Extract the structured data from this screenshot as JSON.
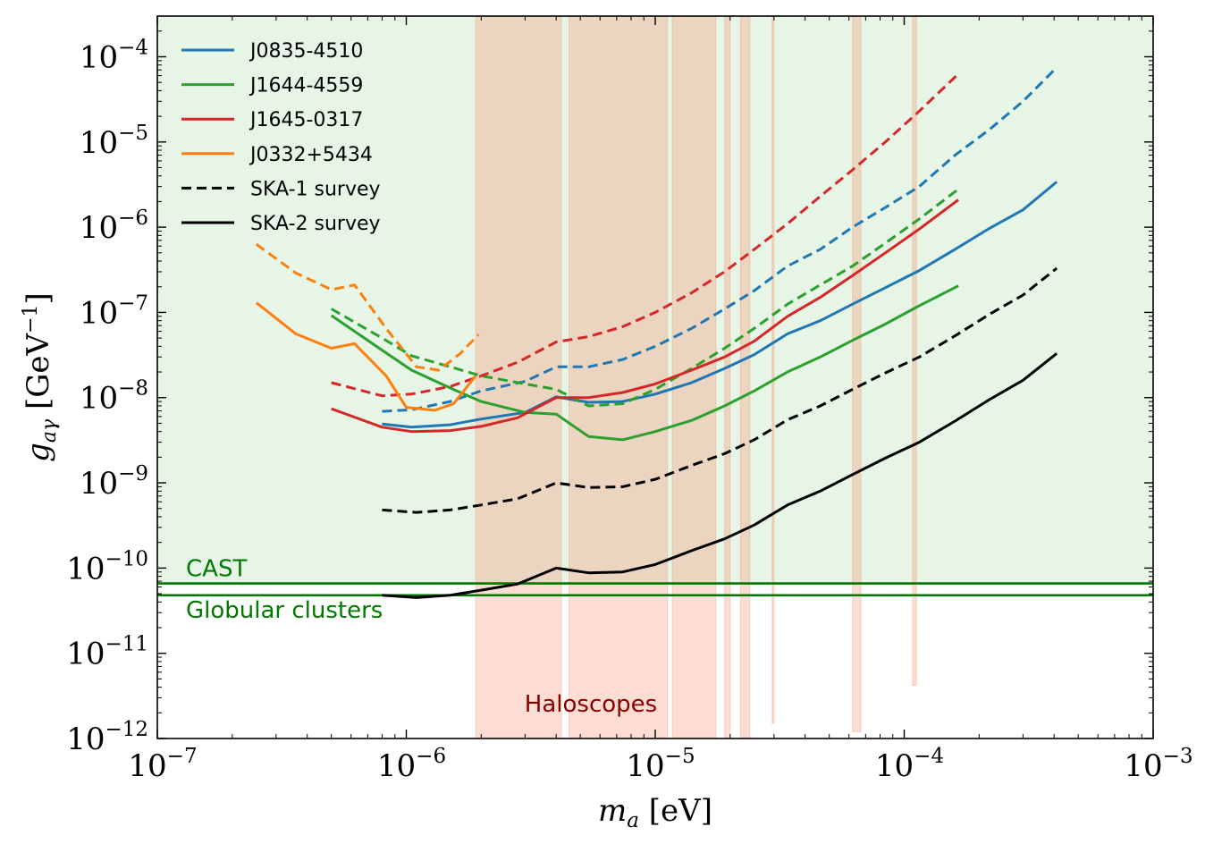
{
  "chart_data": {
    "type": "line",
    "xlabel": "m_a [eV]",
    "ylabel": "g_aγ [GeV^-1]",
    "xscale": "log",
    "yscale": "log",
    "xlim": [
      1e-07,
      0.001
    ],
    "ylim": [
      1e-12,
      0.0003
    ],
    "x_ticks": [
      {
        "base": "10",
        "exp": "−7",
        "value": 1e-07
      },
      {
        "base": "10",
        "exp": "−6",
        "value": 1e-06
      },
      {
        "base": "10",
        "exp": "−5",
        "value": 1e-05
      },
      {
        "base": "10",
        "exp": "−4",
        "value": 0.0001
      },
      {
        "base": "10",
        "exp": "−3",
        "value": 0.001
      }
    ],
    "y_ticks": [
      {
        "base": "10",
        "exp": "−12",
        "value": 1e-12
      },
      {
        "base": "10",
        "exp": "−11",
        "value": 1e-11
      },
      {
        "base": "10",
        "exp": "−10",
        "value": 1e-10
      },
      {
        "base": "10",
        "exp": "−9",
        "value": 1e-09
      },
      {
        "base": "10",
        "exp": "−8",
        "value": 1e-08
      },
      {
        "base": "10",
        "exp": "−7",
        "value": 1e-07
      },
      {
        "base": "10",
        "exp": "−6",
        "value": 1e-06
      },
      {
        "base": "10",
        "exp": "−5",
        "value": 1e-05
      },
      {
        "base": "10",
        "exp": "−4",
        "value": 0.0001
      }
    ],
    "legend_position": "top-left",
    "legend": [
      {
        "label": "J0835-4510",
        "color": "#1f77b4",
        "style": "solid"
      },
      {
        "label": "J1644-4559",
        "color": "#2ca02c",
        "style": "solid"
      },
      {
        "label": "J1645-0317",
        "color": "#d62728",
        "style": "solid"
      },
      {
        "label": "J0332+5434",
        "color": "#ff7f0e",
        "style": "solid"
      },
      {
        "label": "SKA-1 survey",
        "color": "#000000",
        "style": "dashed"
      },
      {
        "label": "SKA-2 survey",
        "color": "#000000",
        "style": "solid"
      }
    ],
    "series": [
      {
        "name": "J0835-4510",
        "survey": "SKA-2",
        "color": "#1f77b4",
        "dashed": false,
        "points": [
          [
            8e-07,
            4.9e-09
          ],
          [
            1.05e-06,
            4.5e-09
          ],
          [
            1.5e-06,
            4.8e-09
          ],
          [
            2e-06,
            5.6e-09
          ],
          [
            3e-06,
            6.7e-09
          ],
          [
            4e-06,
            1.02e-08
          ],
          [
            5.4e-06,
            8.8e-09
          ],
          [
            7.4e-06,
            9e-09
          ],
          [
            1e-05,
            1.1e-08
          ],
          [
            1.4e-05,
            1.5e-08
          ],
          [
            1.9e-05,
            2.2e-08
          ],
          [
            2.5e-05,
            3.2e-08
          ],
          [
            3.4e-05,
            5.6e-08
          ],
          [
            4.6e-05,
            8e-08
          ],
          [
            6.2e-05,
            1.25e-07
          ],
          [
            8.4e-05,
            1.95e-07
          ],
          [
            0.000115,
            3.1e-07
          ],
          [
            0.00016,
            5.5e-07
          ],
          [
            0.00022,
            9.7e-07
          ],
          [
            0.0003,
            1.6e-06
          ],
          [
            0.00041,
            3.4e-06
          ]
        ]
      },
      {
        "name": "J0835-4510",
        "survey": "SKA-1",
        "color": "#1f77b4",
        "dashed": true,
        "points": [
          [
            8e-07,
            6.9e-09
          ],
          [
            1.05e-06,
            7.2e-09
          ],
          [
            1.5e-06,
            9e-09
          ],
          [
            2e-06,
            1.2e-08
          ],
          [
            3e-06,
            1.55e-08
          ],
          [
            4e-06,
            2.3e-08
          ],
          [
            5.4e-06,
            2.3e-08
          ],
          [
            7.4e-06,
            2.8e-08
          ],
          [
            1e-05,
            4e-08
          ],
          [
            1.4e-05,
            6.5e-08
          ],
          [
            1.9e-05,
            1.1e-07
          ],
          [
            2.5e-05,
            1.8e-07
          ],
          [
            3.4e-05,
            3.5e-07
          ],
          [
            4.6e-05,
            5.5e-07
          ],
          [
            6.2e-05,
            1e-06
          ],
          [
            8.4e-05,
            1.7e-06
          ],
          [
            0.000115,
            3e-06
          ],
          [
            0.00016,
            7e-06
          ],
          [
            0.00022,
            1.4e-05
          ],
          [
            0.0003,
            3e-05
          ],
          [
            0.00041,
            7.5e-05
          ]
        ]
      },
      {
        "name": "J1644-4559",
        "survey": "SKA-2",
        "color": "#2ca02c",
        "dashed": false,
        "points": [
          [
            5e-07,
            9.2e-08
          ],
          [
            8e-07,
            3.6e-08
          ],
          [
            1.05e-06,
            2.1e-08
          ],
          [
            1.5e-06,
            1.3e-08
          ],
          [
            2e-06,
            9e-09
          ],
          [
            3e-06,
            6.7e-09
          ],
          [
            4e-06,
            6.4e-09
          ],
          [
            5.4e-06,
            3.5e-09
          ],
          [
            7.4e-06,
            3.2e-09
          ],
          [
            1e-05,
            4e-09
          ],
          [
            1.4e-05,
            5.4e-09
          ],
          [
            1.9e-05,
            8e-09
          ],
          [
            2.5e-05,
            1.2e-08
          ],
          [
            3.4e-05,
            2e-08
          ],
          [
            4.6e-05,
            3e-08
          ],
          [
            6.2e-05,
            4.7e-08
          ],
          [
            8.4e-05,
            7.3e-08
          ],
          [
            0.000115,
            1.2e-07
          ],
          [
            0.000165,
            2.05e-07
          ]
        ]
      },
      {
        "name": "J1644-4559",
        "survey": "SKA-1",
        "color": "#2ca02c",
        "dashed": true,
        "points": [
          [
            5e-07,
            1.1e-07
          ],
          [
            8e-07,
            5e-08
          ],
          [
            1.05e-06,
            3.1e-08
          ],
          [
            1.5e-06,
            2.3e-08
          ],
          [
            2e-06,
            1.8e-08
          ],
          [
            3e-06,
            1.45e-08
          ],
          [
            4e-06,
            1.25e-08
          ],
          [
            5.4e-06,
            8e-09
          ],
          [
            7.4e-06,
            8.5e-09
          ],
          [
            1e-05,
            1.25e-08
          ],
          [
            1.4e-05,
            2.2e-08
          ],
          [
            1.9e-05,
            3.8e-08
          ],
          [
            2.5e-05,
            6.5e-08
          ],
          [
            3.4e-05,
            1.25e-07
          ],
          [
            4.6e-05,
            2.1e-07
          ],
          [
            6.2e-05,
            3.5e-07
          ],
          [
            8.4e-05,
            6.5e-07
          ],
          [
            0.000115,
            1.25e-06
          ],
          [
            0.000165,
            2.8e-06
          ]
        ]
      },
      {
        "name": "J1645-0317",
        "survey": "SKA-2",
        "color": "#d62728",
        "dashed": false,
        "points": [
          [
            5e-07,
            7.4e-09
          ],
          [
            8e-07,
            4.5e-09
          ],
          [
            1.05e-06,
            4e-09
          ],
          [
            1.5e-06,
            4.1e-09
          ],
          [
            2e-06,
            4.6e-09
          ],
          [
            2.8e-06,
            5.8e-09
          ],
          [
            4e-06,
            1e-08
          ],
          [
            5.4e-06,
            1e-08
          ],
          [
            7.4e-06,
            1.15e-08
          ],
          [
            1e-05,
            1.45e-08
          ],
          [
            1.4e-05,
            2.1e-08
          ],
          [
            1.9e-05,
            3e-08
          ],
          [
            2.5e-05,
            4.6e-08
          ],
          [
            3.4e-05,
            9e-08
          ],
          [
            4.6e-05,
            1.5e-07
          ],
          [
            6.2e-05,
            2.7e-07
          ],
          [
            8.4e-05,
            5e-07
          ],
          [
            0.000115,
            9.5e-07
          ],
          [
            0.000165,
            2.1e-06
          ]
        ]
      },
      {
        "name": "J1645-0317",
        "survey": "SKA-1",
        "color": "#d62728",
        "dashed": true,
        "points": [
          [
            5e-07,
            1.5e-08
          ],
          [
            8e-07,
            1.05e-08
          ],
          [
            1.05e-06,
            1.1e-08
          ],
          [
            1.5e-06,
            1.35e-08
          ],
          [
            2e-06,
            1.8e-08
          ],
          [
            2.8e-06,
            2.6e-08
          ],
          [
            4e-06,
            4.5e-08
          ],
          [
            5.4e-06,
            5.2e-08
          ],
          [
            7.4e-06,
            6.8e-08
          ],
          [
            1e-05,
            1e-07
          ],
          [
            1.4e-05,
            1.7e-07
          ],
          [
            1.9e-05,
            3e-07
          ],
          [
            2.5e-05,
            5.5e-07
          ],
          [
            3.4e-05,
            1.1e-06
          ],
          [
            4.6e-05,
            2.3e-06
          ],
          [
            6.2e-05,
            4.7e-06
          ],
          [
            8.4e-05,
            1e-05
          ],
          [
            0.000115,
            2.3e-05
          ],
          [
            0.000165,
            6.3e-05
          ]
        ]
      },
      {
        "name": "J0332+5434",
        "survey": "SKA-2",
        "color": "#ff7f0e",
        "dashed": false,
        "points": [
          [
            2.5e-07,
            1.3e-07
          ],
          [
            3.6e-07,
            5.6e-08
          ],
          [
            5e-07,
            3.8e-08
          ],
          [
            6.2e-07,
            4.3e-08
          ],
          [
            8.3e-07,
            1.8e-08
          ],
          [
            1e-06,
            7.7e-09
          ],
          [
            1.3e-06,
            7.1e-09
          ],
          [
            1.55e-06,
            8.5e-09
          ],
          [
            1.9e-06,
            1.8e-08
          ]
        ]
      },
      {
        "name": "J0332+5434",
        "survey": "SKA-1",
        "color": "#ff7f0e",
        "dashed": true,
        "points": [
          [
            2.5e-07,
            6.3e-07
          ],
          [
            3.6e-07,
            2.9e-07
          ],
          [
            5e-07,
            1.85e-07
          ],
          [
            6.2e-07,
            2.1e-07
          ],
          [
            8.3e-07,
            6.5e-08
          ],
          [
            1.1e-06,
            2.3e-08
          ],
          [
            1.35e-06,
            2.1e-08
          ],
          [
            1.65e-06,
            3.3e-08
          ],
          [
            1.95e-06,
            5.5e-08
          ]
        ]
      },
      {
        "name": "SKA-1 survey",
        "survey": "SKA-1",
        "color": "#000000",
        "dashed": true,
        "points": [
          [
            8e-07,
            4.8e-10
          ],
          [
            1.1e-06,
            4.5e-10
          ],
          [
            1.5e-06,
            4.8e-10
          ],
          [
            2e-06,
            5.5e-10
          ],
          [
            2.8e-06,
            6.5e-10
          ],
          [
            4e-06,
            1e-09
          ],
          [
            5.4e-06,
            8.8e-10
          ],
          [
            7.4e-06,
            9e-10
          ],
          [
            1e-05,
            1.1e-09
          ],
          [
            1.4e-05,
            1.6e-09
          ],
          [
            1.9e-05,
            2.2e-09
          ],
          [
            2.5e-05,
            3.2e-09
          ],
          [
            3.4e-05,
            5.5e-09
          ],
          [
            4.6e-05,
            8e-09
          ],
          [
            6.2e-05,
            1.25e-08
          ],
          [
            8.4e-05,
            1.95e-08
          ],
          [
            0.000115,
            3e-08
          ],
          [
            0.00016,
            5.3e-08
          ],
          [
            0.00022,
            9.5e-08
          ],
          [
            0.0003,
            1.6e-07
          ],
          [
            0.00041,
            3.3e-07
          ]
        ]
      },
      {
        "name": "SKA-2 survey",
        "survey": "SKA-2",
        "color": "#000000",
        "dashed": false,
        "points": [
          [
            8e-07,
            4.8e-11
          ],
          [
            1.1e-06,
            4.5e-11
          ],
          [
            1.5e-06,
            4.8e-11
          ],
          [
            2e-06,
            5.5e-11
          ],
          [
            2.8e-06,
            6.5e-11
          ],
          [
            4e-06,
            1e-10
          ],
          [
            5.4e-06,
            8.8e-11
          ],
          [
            7.4e-06,
            9e-11
          ],
          [
            1e-05,
            1.1e-10
          ],
          [
            1.4e-05,
            1.6e-10
          ],
          [
            1.9e-05,
            2.2e-10
          ],
          [
            2.5e-05,
            3.2e-10
          ],
          [
            3.4e-05,
            5.5e-10
          ],
          [
            4.6e-05,
            8e-10
          ],
          [
            6.2e-05,
            1.25e-09
          ],
          [
            8.4e-05,
            1.95e-09
          ],
          [
            0.000115,
            3e-09
          ],
          [
            0.00016,
            5.3e-09
          ],
          [
            0.00022,
            9.5e-09
          ],
          [
            0.0003,
            1.6e-08
          ],
          [
            0.00041,
            3.3e-08
          ]
        ]
      }
    ],
    "limits": [
      {
        "label": "CAST",
        "value": 6.6e-11,
        "color": "#007a00",
        "label_side": "above"
      },
      {
        "label": "Globular clusters",
        "value": 4.8e-11,
        "color": "#007a00",
        "label_side": "below"
      }
    ],
    "excluded_fill_color": "#e6f5e6",
    "haloscopes": {
      "label": "Haloscopes",
      "label_color": "#8b0000",
      "color": "#fa8c6e",
      "bands": [
        {
          "x": [
            1.9e-06,
            4.2e-06
          ],
          "ymin": 1e-12
        },
        {
          "x": [
            4.5e-06,
            1.12e-05
          ],
          "ymin": 1e-12
        },
        {
          "x": [
            1.17e-05,
            1.75e-05
          ],
          "ymin": 1e-12
        },
        {
          "x": [
            1.9e-05,
            2e-05
          ],
          "ymin": 1e-12
        },
        {
          "x": [
            2.2e-05,
            2.4e-05
          ],
          "ymin": 1e-12
        },
        {
          "x": [
            2.95e-05,
            3e-05
          ],
          "ymin": 1.5e-12
        },
        {
          "x": [
            6.2e-05,
            6.7e-05
          ],
          "ymin": 1.2e-12
        },
        {
          "x": [
            0.000108,
            0.000112
          ],
          "ymin": 4.2e-12
        }
      ]
    }
  }
}
